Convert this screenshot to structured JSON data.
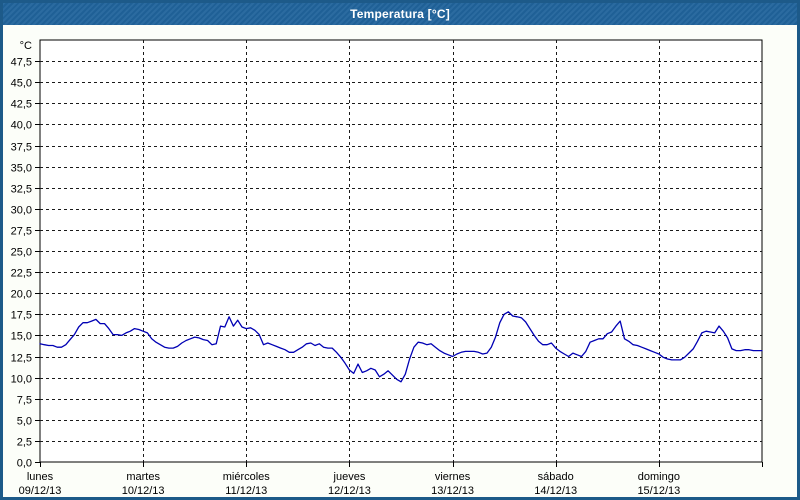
{
  "window": {
    "title": "Temperatura [°C]"
  },
  "colors": {
    "frame": "#1d5a89",
    "titlebar": "#20639b",
    "title_text": "#ffffff",
    "plot_background": "#ffffff",
    "margin_background": "#fcfef9",
    "grid": "#1a1a1a",
    "axis": "#000000",
    "line": "#0000b4"
  },
  "chart_data": {
    "type": "line",
    "title": "Temperatura [°C]",
    "unit_label": "°C",
    "ylim": [
      0,
      50
    ],
    "ytick_step": 2.5,
    "ytick_max": 47.5,
    "ytick_labels": [
      "47,5",
      "45,0",
      "42,5",
      "40,0",
      "37,5",
      "35,0",
      "32,5",
      "30,0",
      "27,5",
      "25,0",
      "22,5",
      "20,0",
      "17,5",
      "15,0",
      "12,5",
      "10,0",
      "7,5",
      "5,0",
      "2,5",
      "0,0"
    ],
    "grid": "dashed",
    "legend": "none",
    "days": [
      {
        "weekday": "lunes",
        "date": "09/12/13"
      },
      {
        "weekday": "martes",
        "date": "10/12/13"
      },
      {
        "weekday": "miércoles",
        "date": "11/12/13"
      },
      {
        "weekday": "jueves",
        "date": "12/12/13"
      },
      {
        "weekday": "viernes",
        "date": "13/12/13"
      },
      {
        "weekday": "sábado",
        "date": "14/12/13"
      },
      {
        "weekday": "domingo",
        "date": "15/12/13"
      }
    ],
    "series": [
      {
        "name": "Temperatura",
        "unit": "°C",
        "sampling": "hourly, 7 days plus closing point",
        "values": [
          14.0,
          13.9,
          13.8,
          13.8,
          13.6,
          13.6,
          13.9,
          14.5,
          15.1,
          16.0,
          16.5,
          16.5,
          16.7,
          16.9,
          16.4,
          16.4,
          15.8,
          15.1,
          15.1,
          15.0,
          15.3,
          15.5,
          15.8,
          15.7,
          15.5,
          15.3,
          14.6,
          14.2,
          13.9,
          13.6,
          13.5,
          13.5,
          13.7,
          14.1,
          14.4,
          14.6,
          14.8,
          14.7,
          14.5,
          14.4,
          13.9,
          14.0,
          16.1,
          16.0,
          17.2,
          16.1,
          16.8,
          16.0,
          15.8,
          15.9,
          15.6,
          15.1,
          13.9,
          14.1,
          13.9,
          13.7,
          13.5,
          13.3,
          13.0,
          13.0,
          13.3,
          13.6,
          14.0,
          14.1,
          13.8,
          14.0,
          13.6,
          13.5,
          13.5,
          13.0,
          12.4,
          11.7,
          10.9,
          10.5,
          11.6,
          10.6,
          10.8,
          11.1,
          10.9,
          10.1,
          10.4,
          10.8,
          10.3,
          9.8,
          9.5,
          10.4,
          12.2,
          13.6,
          14.2,
          14.1,
          13.9,
          14.0,
          13.6,
          13.2,
          12.9,
          12.7,
          12.5,
          12.8,
          13.0,
          13.1,
          13.1,
          13.1,
          13.0,
          12.8,
          12.9,
          13.6,
          14.8,
          16.5,
          17.5,
          17.8,
          17.3,
          17.2,
          17.1,
          16.6,
          15.8,
          15.0,
          14.3,
          13.9,
          13.9,
          14.1,
          13.5,
          13.1,
          12.8,
          12.5,
          12.9,
          12.7,
          12.5,
          13.1,
          14.2,
          14.4,
          14.6,
          14.6,
          15.2,
          15.4,
          16.1,
          16.7,
          14.6,
          14.3,
          13.9,
          13.8,
          13.6,
          13.4,
          13.2,
          13.0,
          12.8,
          12.4,
          12.2,
          12.1,
          12.1,
          12.1,
          12.4,
          12.9,
          13.4,
          14.3,
          15.3,
          15.5,
          15.4,
          15.3,
          16.1,
          15.5,
          14.7,
          13.4,
          13.2,
          13.2,
          13.3,
          13.3,
          13.2,
          13.2,
          13.2
        ]
      }
    ]
  }
}
